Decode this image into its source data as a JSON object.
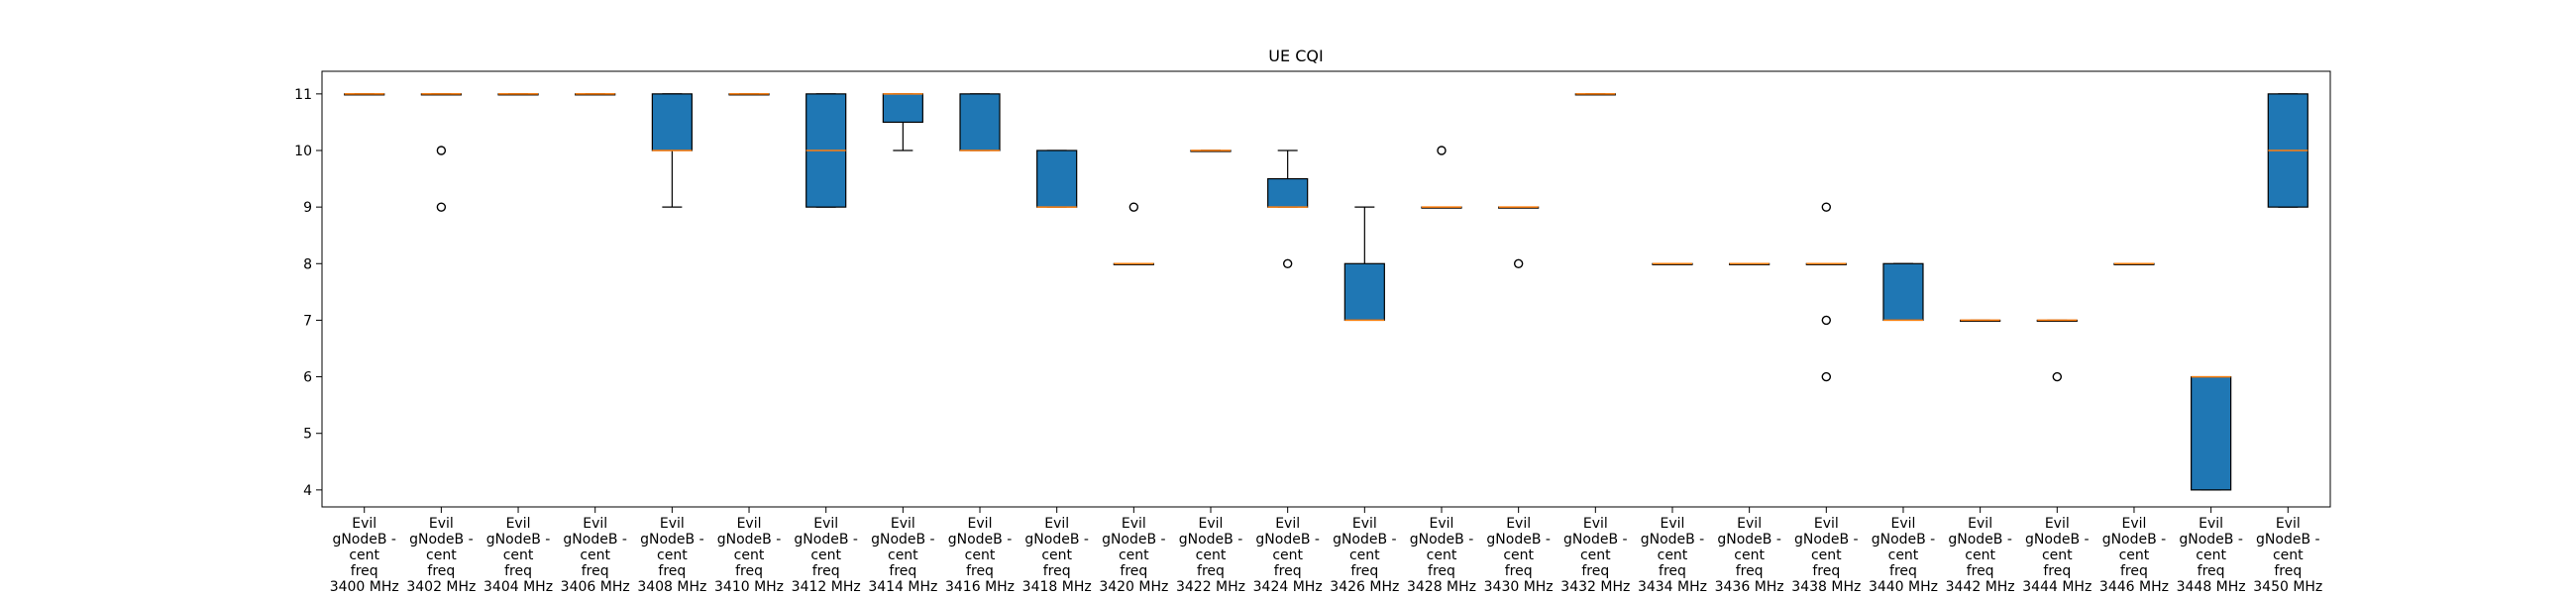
{
  "chart_data": {
    "type": "box",
    "title": "UE CQI",
    "xlabel": "",
    "ylabel": "",
    "ylim": [
      3.7,
      11.4
    ],
    "yticks": [
      4,
      5,
      6,
      7,
      8,
      9,
      10,
      11
    ],
    "grid": false,
    "box_color": "#1f77b4",
    "median_color": "#ff7f0e",
    "categories": [
      "Evil gNodeB - cent freq 3400 MHz",
      "Evil gNodeB - cent freq 3402 MHz",
      "Evil gNodeB - cent freq 3404 MHz",
      "Evil gNodeB - cent freq 3406 MHz",
      "Evil gNodeB - cent freq 3408 MHz",
      "Evil gNodeB - cent freq 3410 MHz",
      "Evil gNodeB - cent freq 3412 MHz",
      "Evil gNodeB - cent freq 3414 MHz",
      "Evil gNodeB - cent freq 3416 MHz",
      "Evil gNodeB - cent freq 3418 MHz",
      "Evil gNodeB - cent freq 3420 MHz",
      "Evil gNodeB - cent freq 3422 MHz",
      "Evil gNodeB - cent freq 3424 MHz",
      "Evil gNodeB - cent freq 3426 MHz",
      "Evil gNodeB - cent freq 3428 MHz",
      "Evil gNodeB - cent freq 3430 MHz",
      "Evil gNodeB - cent freq 3432 MHz",
      "Evil gNodeB - cent freq 3434 MHz",
      "Evil gNodeB - cent freq 3436 MHz",
      "Evil gNodeB - cent freq 3438 MHz",
      "Evil gNodeB - cent freq 3440 MHz",
      "Evil gNodeB - cent freq 3442 MHz",
      "Evil gNodeB - cent freq 3444 MHz",
      "Evil gNodeB - cent freq 3446 MHz",
      "Evil gNodeB - cent freq 3448 MHz",
      "Evil gNodeB - cent freq 3450 MHz"
    ],
    "tick_label_lines": [
      [
        "Evil",
        "gNodeB -",
        "cent",
        "freq",
        "3400 MHz"
      ],
      [
        "Evil",
        "gNodeB -",
        "cent",
        "freq",
        "3402 MHz"
      ],
      [
        "Evil",
        "gNodeB -",
        "cent",
        "freq",
        "3404 MHz"
      ],
      [
        "Evil",
        "gNodeB -",
        "cent",
        "freq",
        "3406 MHz"
      ],
      [
        "Evil",
        "gNodeB -",
        "cent",
        "freq",
        "3408 MHz"
      ],
      [
        "Evil",
        "gNodeB -",
        "cent",
        "freq",
        "3410 MHz"
      ],
      [
        "Evil",
        "gNodeB -",
        "cent",
        "freq",
        "3412 MHz"
      ],
      [
        "Evil",
        "gNodeB -",
        "cent",
        "freq",
        "3414 MHz"
      ],
      [
        "Evil",
        "gNodeB -",
        "cent",
        "freq",
        "3416 MHz"
      ],
      [
        "Evil",
        "gNodeB -",
        "cent",
        "freq",
        "3418 MHz"
      ],
      [
        "Evil",
        "gNodeB -",
        "cent",
        "freq",
        "3420 MHz"
      ],
      [
        "Evil",
        "gNodeB -",
        "cent",
        "freq",
        "3422 MHz"
      ],
      [
        "Evil",
        "gNodeB -",
        "cent",
        "freq",
        "3424 MHz"
      ],
      [
        "Evil",
        "gNodeB -",
        "cent",
        "freq",
        "3426 MHz"
      ],
      [
        "Evil",
        "gNodeB -",
        "cent",
        "freq",
        "3428 MHz"
      ],
      [
        "Evil",
        "gNodeB -",
        "cent",
        "freq",
        "3430 MHz"
      ],
      [
        "Evil",
        "gNodeB -",
        "cent",
        "freq",
        "3432 MHz"
      ],
      [
        "Evil",
        "gNodeB -",
        "cent",
        "freq",
        "3434 MHz"
      ],
      [
        "Evil",
        "gNodeB -",
        "cent",
        "freq",
        "3436 MHz"
      ],
      [
        "Evil",
        "gNodeB -",
        "cent",
        "freq",
        "3438 MHz"
      ],
      [
        "Evil",
        "gNodeB -",
        "cent",
        "freq",
        "3440 MHz"
      ],
      [
        "Evil",
        "gNodeB -",
        "cent",
        "freq",
        "3442 MHz"
      ],
      [
        "Evil",
        "gNodeB -",
        "cent",
        "freq",
        "3444 MHz"
      ],
      [
        "Evil",
        "gNodeB -",
        "cent",
        "freq",
        "3446 MHz"
      ],
      [
        "Evil",
        "gNodeB -",
        "cent",
        "freq",
        "3448 MHz"
      ],
      [
        "Evil",
        "gNodeB -",
        "cent",
        "freq",
        "3450 MHz"
      ]
    ],
    "boxes": [
      {
        "q1": 11,
        "median": 11,
        "q3": 11,
        "whisker_low": 11,
        "whisker_high": 11,
        "outliers": []
      },
      {
        "q1": 11,
        "median": 11,
        "q3": 11,
        "whisker_low": 11,
        "whisker_high": 11,
        "outliers": [
          10,
          9
        ]
      },
      {
        "q1": 11,
        "median": 11,
        "q3": 11,
        "whisker_low": 11,
        "whisker_high": 11,
        "outliers": []
      },
      {
        "q1": 11,
        "median": 11,
        "q3": 11,
        "whisker_low": 11,
        "whisker_high": 11,
        "outliers": []
      },
      {
        "q1": 10,
        "median": 10,
        "q3": 11,
        "whisker_low": 9,
        "whisker_high": 11,
        "outliers": []
      },
      {
        "q1": 11,
        "median": 11,
        "q3": 11,
        "whisker_low": 11,
        "whisker_high": 11,
        "outliers": []
      },
      {
        "q1": 9,
        "median": 10,
        "q3": 11,
        "whisker_low": 9,
        "whisker_high": 11,
        "outliers": []
      },
      {
        "q1": 10.5,
        "median": 11,
        "q3": 11,
        "whisker_low": 10,
        "whisker_high": 11,
        "outliers": []
      },
      {
        "q1": 10,
        "median": 10,
        "q3": 11,
        "whisker_low": 10,
        "whisker_high": 11,
        "outliers": []
      },
      {
        "q1": 9,
        "median": 9,
        "q3": 10,
        "whisker_low": 9,
        "whisker_high": 10,
        "outliers": []
      },
      {
        "q1": 8,
        "median": 8,
        "q3": 8,
        "whisker_low": 8,
        "whisker_high": 8,
        "outliers": [
          9
        ]
      },
      {
        "q1": 10,
        "median": 10,
        "q3": 10,
        "whisker_low": 10,
        "whisker_high": 10,
        "outliers": []
      },
      {
        "q1": 9,
        "median": 9,
        "q3": 9.5,
        "whisker_low": 9,
        "whisker_high": 10,
        "outliers": [
          8
        ]
      },
      {
        "q1": 7,
        "median": 7,
        "q3": 8,
        "whisker_low": 7,
        "whisker_high": 9,
        "outliers": []
      },
      {
        "q1": 9,
        "median": 9,
        "q3": 9,
        "whisker_low": 9,
        "whisker_high": 9,
        "outliers": [
          10
        ]
      },
      {
        "q1": 9,
        "median": 9,
        "q3": 9,
        "whisker_low": 9,
        "whisker_high": 9,
        "outliers": [
          8
        ]
      },
      {
        "q1": 11,
        "median": 11,
        "q3": 11,
        "whisker_low": 11,
        "whisker_high": 11,
        "outliers": []
      },
      {
        "q1": 8,
        "median": 8,
        "q3": 8,
        "whisker_low": 8,
        "whisker_high": 8,
        "outliers": []
      },
      {
        "q1": 8,
        "median": 8,
        "q3": 8,
        "whisker_low": 8,
        "whisker_high": 8,
        "outliers": []
      },
      {
        "q1": 8,
        "median": 8,
        "q3": 8,
        "whisker_low": 8,
        "whisker_high": 8,
        "outliers": [
          9,
          7,
          6
        ]
      },
      {
        "q1": 7,
        "median": 7,
        "q3": 8,
        "whisker_low": 7,
        "whisker_high": 8,
        "outliers": []
      },
      {
        "q1": 7,
        "median": 7,
        "q3": 7,
        "whisker_low": 7,
        "whisker_high": 7,
        "outliers": []
      },
      {
        "q1": 7,
        "median": 7,
        "q3": 7,
        "whisker_low": 7,
        "whisker_high": 7,
        "outliers": [
          6
        ]
      },
      {
        "q1": 8,
        "median": 8,
        "q3": 8,
        "whisker_low": 8,
        "whisker_high": 8,
        "outliers": []
      },
      {
        "q1": 4,
        "median": 6,
        "q3": 6,
        "whisker_low": 4,
        "whisker_high": 6,
        "outliers": []
      },
      {
        "q1": 9,
        "median": 10,
        "q3": 11,
        "whisker_low": 9,
        "whisker_high": 11,
        "outliers": []
      }
    ]
  }
}
